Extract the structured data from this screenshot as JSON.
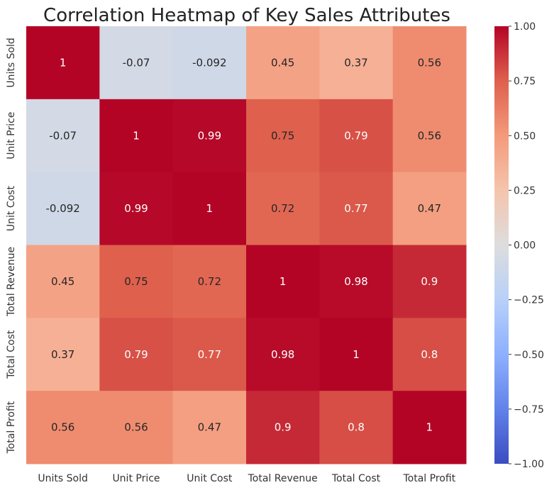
{
  "chart_data": {
    "type": "heatmap",
    "title": "Correlation Heatmap of Key Sales Attributes",
    "x_labels": [
      "Units Sold",
      "Unit Price",
      "Unit Cost",
      "Total Revenue",
      "Total Cost",
      "Total Profit"
    ],
    "y_labels": [
      "Units Sold",
      "Unit Price",
      "Unit Cost",
      "Total Revenue",
      "Total Cost",
      "Total Profit"
    ],
    "values": [
      [
        1,
        -0.07,
        -0.092,
        0.45,
        0.37,
        0.56
      ],
      [
        -0.07,
        1,
        0.99,
        0.75,
        0.79,
        0.56
      ],
      [
        -0.092,
        0.99,
        1,
        0.72,
        0.77,
        0.47
      ],
      [
        0.45,
        0.75,
        0.72,
        1,
        0.98,
        0.9
      ],
      [
        0.37,
        0.79,
        0.77,
        0.98,
        1,
        0.8
      ],
      [
        0.56,
        0.56,
        0.47,
        0.9,
        0.8,
        1
      ]
    ],
    "cell_labels": [
      [
        "1",
        "-0.07",
        "-0.092",
        "0.45",
        "0.37",
        "0.56"
      ],
      [
        "-0.07",
        "1",
        "0.99",
        "0.75",
        "0.79",
        "0.56"
      ],
      [
        "-0.092",
        "0.99",
        "1",
        "0.72",
        "0.77",
        "0.47"
      ],
      [
        "0.45",
        "0.75",
        "0.72",
        "1",
        "0.98",
        "0.9"
      ],
      [
        "0.37",
        "0.79",
        "0.77",
        "0.98",
        "1",
        "0.8"
      ],
      [
        "0.56",
        "0.56",
        "0.47",
        "0.9",
        "0.8",
        "1"
      ]
    ],
    "colormap": "coolwarm",
    "vmin": -1,
    "vmax": 1,
    "colorbar_ticks": [
      1,
      0.75,
      0.5,
      0.25,
      0,
      -0.25,
      -0.5,
      -0.75,
      -1
    ],
    "colorbar_tick_labels": [
      "1.00",
      "0.75",
      "0.50",
      "0.25",
      "0.00",
      "−0.25",
      "−0.50",
      "−0.75",
      "−1.00"
    ],
    "colorbar_placement": "right",
    "grid": false,
    "colors": {
      "low": "#3b4cc0",
      "mid": "#dddddd",
      "high": "#b40426"
    }
  }
}
